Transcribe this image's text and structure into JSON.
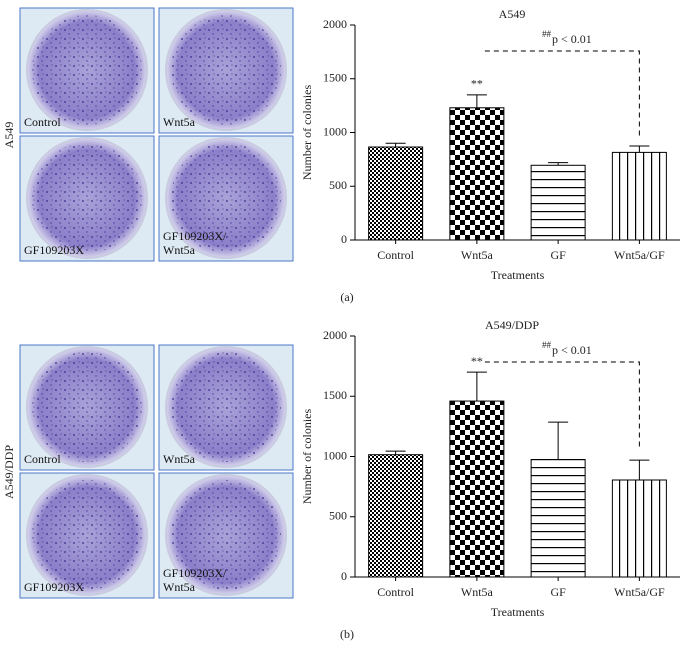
{
  "panels": [
    {
      "row_label": "A549",
      "labels": [
        [
          "Control"
        ],
        [
          "Wnt5a"
        ],
        [
          "GF109203X"
        ],
        [
          "GF109203X/",
          "Wnt5a"
        ]
      ],
      "caption": "(a)"
    },
    {
      "row_label": "A549/DDP",
      "labels": [
        [
          "Control"
        ],
        [
          "Wnt5a"
        ],
        [
          "GF109203X"
        ],
        [
          "GF109203X/",
          "Wnt5a"
        ]
      ],
      "caption": "(b)"
    }
  ],
  "chart_data": [
    {
      "type": "bar",
      "title": "A549",
      "x_label": "Treatments",
      "y_label": "Number of colonies",
      "categories": [
        "Control",
        "Wnt5a",
        "GF",
        "Wnt5a/GF"
      ],
      "values": [
        865,
        1230,
        695,
        815
      ],
      "errors": [
        35,
        120,
        25,
        60
      ],
      "value_annotations": [
        null,
        "**",
        null,
        null
      ],
      "patterns": [
        "checker-fine",
        "checker",
        "hlines",
        "vlines"
      ],
      "annotation_mark": "##",
      "annotation": "p < 0.01",
      "ylim": [
        0,
        2000
      ],
      "yticks": [
        0,
        500,
        1000,
        1500,
        2000
      ]
    },
    {
      "type": "bar",
      "title": "A549/DDP",
      "x_label": "Treatments",
      "y_label": "Number of colonies",
      "categories": [
        "Control",
        "Wnt5a",
        "GF",
        "Wnt5a/GF"
      ],
      "values": [
        1015,
        1460,
        975,
        805
      ],
      "errors": [
        30,
        240,
        310,
        165
      ],
      "value_annotations": [
        null,
        "**",
        null,
        null
      ],
      "patterns": [
        "checker-fine",
        "checker",
        "hlines",
        "vlines"
      ],
      "annotation_mark": "##",
      "annotation": "p < 0.01",
      "ylim": [
        0,
        2000
      ],
      "yticks": [
        0,
        500,
        1000,
        1500,
        2000
      ]
    }
  ]
}
